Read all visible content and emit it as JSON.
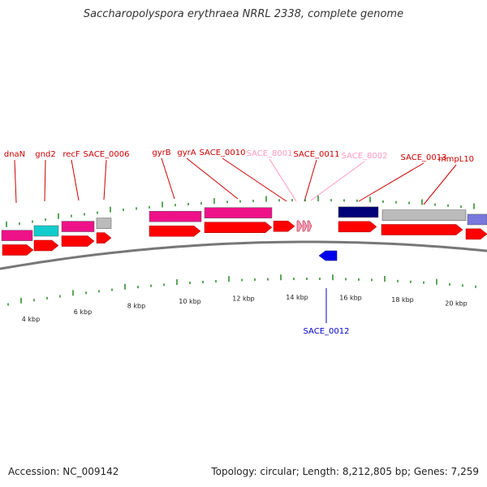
{
  "title": "Saccharopolyspora erythraea NRRL 2338, complete genome",
  "accession_text": "Accession: NC_009142",
  "summary_text": "Topology: circular; Length: 8,212,805 bp; Genes: 7,259",
  "colors": {
    "cds": "#ff0000",
    "gene_label": "#cc0000",
    "pseudo_label": "#ff99bb",
    "reverse_label": "#0000cc",
    "reverse_feature": "#0000ee",
    "tick": "#228822",
    "backbone": "#777777",
    "cog_magenta": "#ee1188",
    "cog_cyan": "#11cccc",
    "cog_gray": "#bbbbbb",
    "cog_navy": "#000077",
    "cog_purple": "#7777dd"
  },
  "scale_labels": [
    "4 kbp",
    "6 kbp",
    "8 kbp",
    "10 kbp",
    "12 kbp",
    "14 kbp",
    "16 kbp",
    "18 kbp",
    "20 kbp"
  ],
  "forward_genes": [
    {
      "label": "dnaN",
      "kind": "gene"
    },
    {
      "label": "gnd2",
      "kind": "gene"
    },
    {
      "label": "recF",
      "kind": "gene"
    },
    {
      "label": "SACE_0006",
      "kind": "gene"
    },
    {
      "label": "gyrB",
      "kind": "gene"
    },
    {
      "label": "gyrA",
      "kind": "gene"
    },
    {
      "label": "SACE_0010",
      "kind": "gene"
    },
    {
      "label": "SACE_8001",
      "kind": "pseudo"
    },
    {
      "label": "SACE_0011",
      "kind": "gene"
    },
    {
      "label": "SACE_8002",
      "kind": "pseudo"
    },
    {
      "label": "SACE_0013",
      "kind": "gene"
    },
    {
      "label": "mmpL10",
      "kind": "gene"
    }
  ],
  "reverse_genes": [
    {
      "label": "SACE_0012"
    }
  ]
}
